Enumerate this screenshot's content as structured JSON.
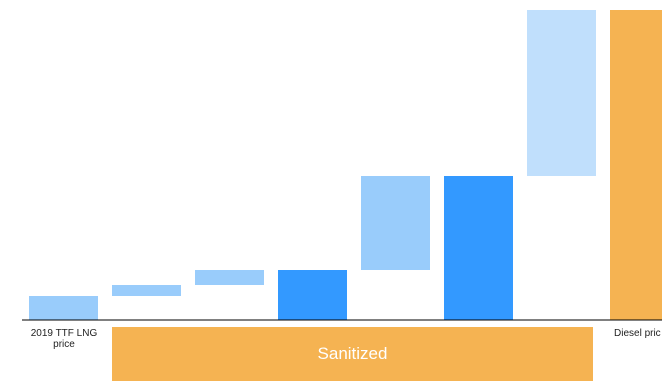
{
  "chart_data": {
    "type": "bar",
    "subtype": "waterfall",
    "categories": [
      "2019 TTF LNG price",
      "",
      "",
      "",
      "",
      "",
      "",
      "Diesel price"
    ],
    "bars": [
      {
        "start": 0,
        "end": 24,
        "kind": "light"
      },
      {
        "start": 24,
        "end": 35,
        "kind": "light"
      },
      {
        "start": 35,
        "end": 50,
        "kind": "light"
      },
      {
        "start": 0,
        "end": 50,
        "kind": "dark"
      },
      {
        "start": 50,
        "end": 144,
        "kind": "light"
      },
      {
        "start": 0,
        "end": 144,
        "kind": "dark"
      },
      {
        "start": 144,
        "end": 310,
        "kind": "pale"
      },
      {
        "start": 0,
        "end": 310,
        "kind": "total"
      }
    ],
    "ylim": [
      0,
      310
    ],
    "grid": false,
    "legend": "none",
    "colors": {
      "light": "#99ccfb",
      "dark": "#3399ff",
      "pale": "#c0dffc",
      "total": "#f5b352",
      "axis": "#000000"
    }
  },
  "labels": {
    "first": "2019 TTF LNG price",
    "last": "Diesel pric"
  },
  "banner": {
    "text": "Sanitized",
    "color": "#f5b352"
  }
}
